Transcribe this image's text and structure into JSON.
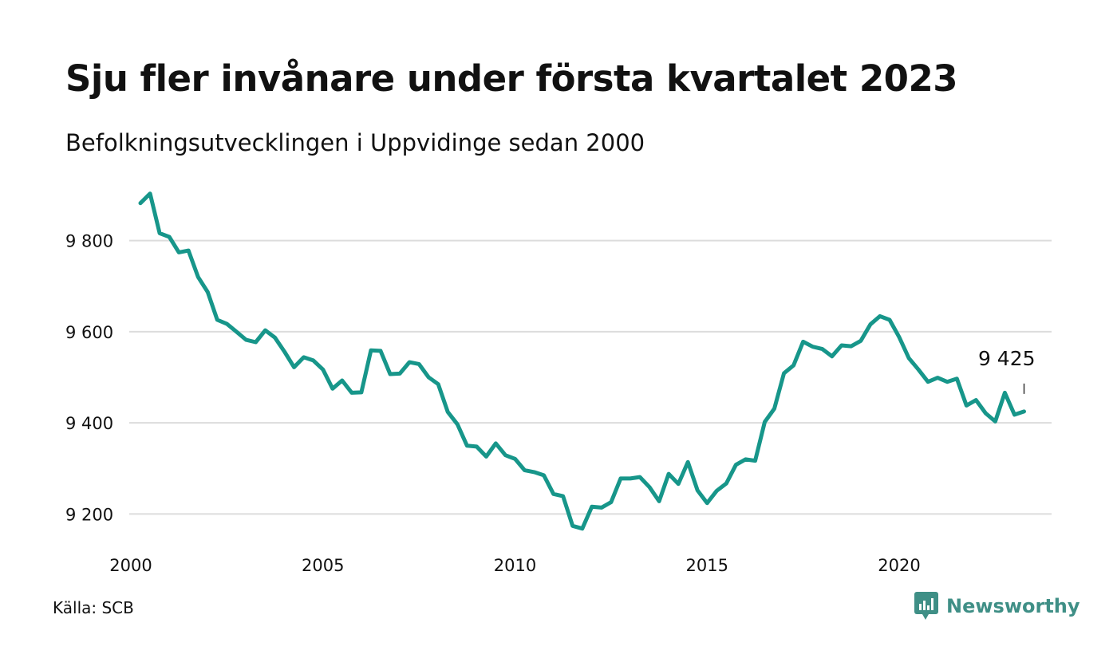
{
  "title": "Sju fler invånare under första kvartalet 2023",
  "subtitle": "Befolkningsutvecklingen i Uppvidinge sedan 2000",
  "source": "Källa: SCB",
  "brand": {
    "name": "Newsworthy",
    "icon": "newsworthy-logo-icon",
    "color": "#3f8f86"
  },
  "colors": {
    "line": "#17968a",
    "grid": "#dcdcdc",
    "text": "#111111"
  },
  "chart_data": {
    "type": "line",
    "title": "Sju fler invånare under första kvartalet 2023",
    "subtitle": "Befolkningsutvecklingen i Uppvidinge sedan 2000",
    "xlabel": "",
    "ylabel": "",
    "x_ticks": [
      "2000",
      "2005",
      "2010",
      "2015",
      "2020"
    ],
    "y_ticks": [
      "9 200",
      "9 400",
      "9 600",
      "9 800"
    ],
    "y_tick_values": [
      9200,
      9400,
      9600,
      9800
    ],
    "xlim": [
      2000.0,
      2023.8
    ],
    "ylim": [
      9150,
      9920
    ],
    "grid": true,
    "last_label": "9 425",
    "series": [
      {
        "values": [
          [
            2000.25,
            9882
          ],
          [
            2000.5,
            9903
          ],
          [
            2000.75,
            9816
          ],
          [
            2001.0,
            9808
          ],
          [
            2001.25,
            9774
          ],
          [
            2001.5,
            9778
          ],
          [
            2001.75,
            9720
          ],
          [
            2002.0,
            9687
          ],
          [
            2002.25,
            9626
          ],
          [
            2002.5,
            9617
          ],
          [
            2002.75,
            9600
          ],
          [
            2003.0,
            9582
          ],
          [
            2003.25,
            9577
          ],
          [
            2003.5,
            9603
          ],
          [
            2003.75,
            9587
          ],
          [
            2004.0,
            9556
          ],
          [
            2004.25,
            9522
          ],
          [
            2004.5,
            9544
          ],
          [
            2004.75,
            9537
          ],
          [
            2005.0,
            9517
          ],
          [
            2005.25,
            9475
          ],
          [
            2005.5,
            9493
          ],
          [
            2005.75,
            9466
          ],
          [
            2006.0,
            9467
          ],
          [
            2006.25,
            9559
          ],
          [
            2006.5,
            9558
          ],
          [
            2006.75,
            9507
          ],
          [
            2007.0,
            9508
          ],
          [
            2007.25,
            9533
          ],
          [
            2007.5,
            9529
          ],
          [
            2007.75,
            9500
          ],
          [
            2008.0,
            9485
          ],
          [
            2008.25,
            9424
          ],
          [
            2008.5,
            9397
          ],
          [
            2008.75,
            9350
          ],
          [
            2009.0,
            9348
          ],
          [
            2009.25,
            9326
          ],
          [
            2009.5,
            9355
          ],
          [
            2009.75,
            9329
          ],
          [
            2010.0,
            9321
          ],
          [
            2010.25,
            9296
          ],
          [
            2010.5,
            9292
          ],
          [
            2010.75,
            9285
          ],
          [
            2011.0,
            9244
          ],
          [
            2011.25,
            9239
          ],
          [
            2011.5,
            9174
          ],
          [
            2011.75,
            9168
          ],
          [
            2012.0,
            9216
          ],
          [
            2012.25,
            9214
          ],
          [
            2012.5,
            9226
          ],
          [
            2012.75,
            9278
          ],
          [
            2013.0,
            9278
          ],
          [
            2013.25,
            9281
          ],
          [
            2013.5,
            9259
          ],
          [
            2013.75,
            9228
          ],
          [
            2014.0,
            9288
          ],
          [
            2014.25,
            9266
          ],
          [
            2014.5,
            9314
          ],
          [
            2014.75,
            9252
          ],
          [
            2015.0,
            9224
          ],
          [
            2015.25,
            9251
          ],
          [
            2015.5,
            9267
          ],
          [
            2015.75,
            9308
          ],
          [
            2016.0,
            9320
          ],
          [
            2016.25,
            9317
          ],
          [
            2016.5,
            9402
          ],
          [
            2016.75,
            9431
          ],
          [
            2017.0,
            9509
          ],
          [
            2017.25,
            9526
          ],
          [
            2017.5,
            9578
          ],
          [
            2017.75,
            9567
          ],
          [
            2018.0,
            9562
          ],
          [
            2018.25,
            9546
          ],
          [
            2018.5,
            9570
          ],
          [
            2018.75,
            9568
          ],
          [
            2019.0,
            9580
          ],
          [
            2019.25,
            9616
          ],
          [
            2019.5,
            9634
          ],
          [
            2019.75,
            9626
          ],
          [
            2020.0,
            9588
          ],
          [
            2020.25,
            9542
          ],
          [
            2020.5,
            9517
          ],
          [
            2020.75,
            9490
          ],
          [
            2021.0,
            9499
          ],
          [
            2021.25,
            9490
          ],
          [
            2021.5,
            9497
          ],
          [
            2021.75,
            9438
          ],
          [
            2022.0,
            9450
          ],
          [
            2022.25,
            9421
          ],
          [
            2022.5,
            9403
          ],
          [
            2022.75,
            9466
          ],
          [
            2023.0,
            9418
          ],
          [
            2023.25,
            9425
          ]
        ]
      }
    ]
  }
}
